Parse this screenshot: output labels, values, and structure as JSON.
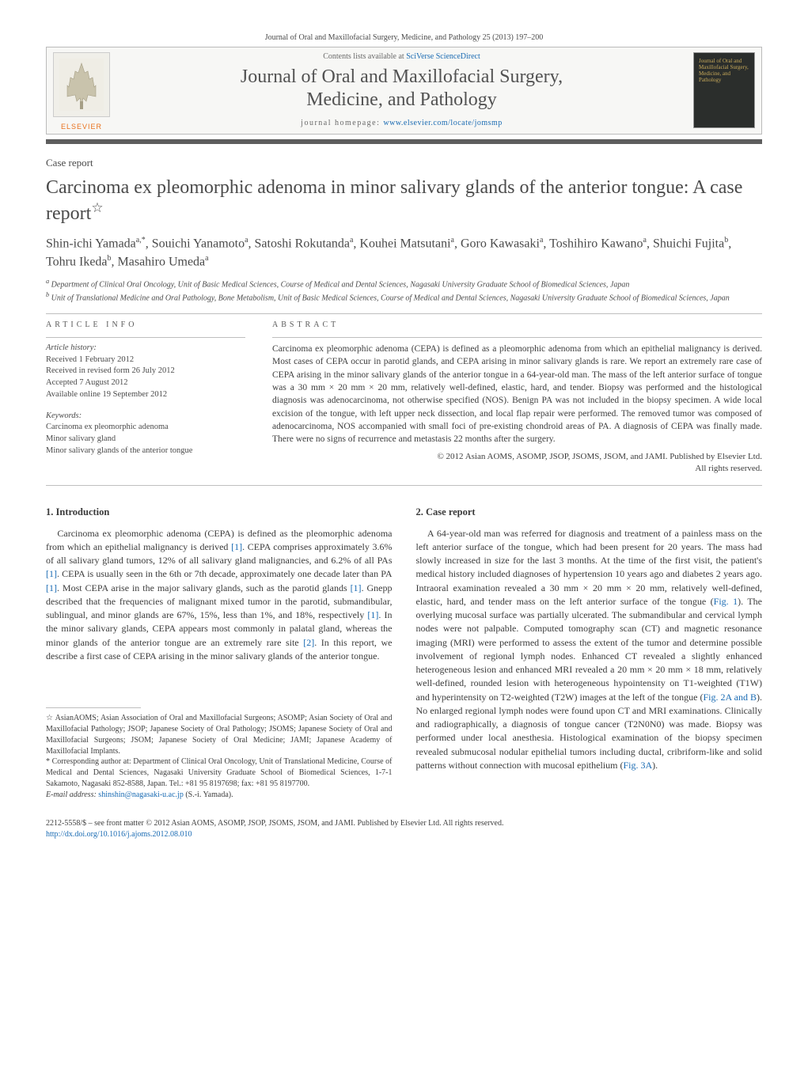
{
  "header": {
    "citation": "Journal of Oral and Maxillofacial Surgery, Medicine, and Pathology 25 (2013) 197–200",
    "contents_label": "Contents lists available at ",
    "contents_link": "SciVerse ScienceDirect",
    "journal_name_l1": "Journal of Oral and Maxillofacial Surgery,",
    "journal_name_l2": "Medicine, and Pathology",
    "homepage_label": "journal homepage: ",
    "homepage_url": "www.elsevier.com/locate/jomsmp",
    "publisher_word": "ELSEVIER",
    "cover_text": "Journal of Oral and Maxillofacial Surgery, Medicine, and Pathology"
  },
  "article": {
    "doc_type": "Case report",
    "title": "Carcinoma ex pleomorphic adenoma in minor salivary glands of the anterior tongue: A case report",
    "title_star": "☆",
    "authors_html": "Shin-ichi Yamada<sup>a,*</sup>, Souichi Yanamoto<sup>a</sup>, Satoshi Rokutanda<sup>a</sup>, Kouhei Matsutani<sup>a</sup>, Goro Kawasaki<sup>a</sup>, Toshihiro Kawano<sup>a</sup>, Shuichi Fujita<sup>b</sup>, Tohru Ikeda<sup>b</sup>, Masahiro Umeda<sup>a</sup>",
    "affiliations": {
      "a": "Department of Clinical Oral Oncology, Unit of Basic Medical Sciences, Course of Medical and Dental Sciences, Nagasaki University Graduate School of Biomedical Sciences, Japan",
      "b": "Unit of Translational Medicine and Oral Pathology, Bone Metabolism, Unit of Basic Medical Sciences, Course of Medical and Dental Sciences, Nagasaki University Graduate School of Biomedical Sciences, Japan"
    }
  },
  "info": {
    "heading": "article info",
    "history_label": "Article history:",
    "received": "Received 1 February 2012",
    "revised": "Received in revised form 26 July 2012",
    "accepted": "Accepted 7 August 2012",
    "online": "Available online 19 September 2012",
    "keywords_label": "Keywords:",
    "kw1": "Carcinoma ex pleomorphic adenoma",
    "kw2": "Minor salivary gland",
    "kw3": "Minor salivary glands of the anterior tongue"
  },
  "abstract": {
    "heading": "abstract",
    "body": "Carcinoma ex pleomorphic adenoma (CEPA) is defined as a pleomorphic adenoma from which an epithelial malignancy is derived. Most cases of CEPA occur in parotid glands, and CEPA arising in minor salivary glands is rare. We report an extremely rare case of CEPA arising in the minor salivary glands of the anterior tongue in a 64-year-old man. The mass of the left anterior surface of tongue was a 30 mm × 20 mm × 20 mm, relatively well-defined, elastic, hard, and tender. Biopsy was performed and the histological diagnosis was adenocarcinoma, not otherwise specified (NOS). Benign PA was not included in the biopsy specimen. A wide local excision of the tongue, with left upper neck dissection, and local flap repair were performed. The removed tumor was composed of adenocarcinoma, NOS accompanied with small foci of pre-existing chondroid areas of PA. A diagnosis of CEPA was finally made. There were no signs of recurrence and metastasis 22 months after the surgery.",
    "copyright1": "© 2012 Asian AOMS, ASOMP, JSOP, JSOMS, JSOM, and JAMI. Published by Elsevier Ltd.",
    "copyright2": "All rights reserved."
  },
  "sections": {
    "intro_head": "1.  Introduction",
    "intro_body": "Carcinoma ex pleomorphic adenoma (CEPA) is defined as the pleomorphic adenoma from which an epithelial malignancy is derived [1]. CEPA comprises approximately 3.6% of all salivary gland tumors, 12% of all salivary gland malignancies, and 6.2% of all PAs [1]. CEPA is usually seen in the 6th or 7th decade, approximately one decade later than PA [1]. Most CEPA arise in the major salivary glands, such as the parotid glands [1]. Gnepp described that the frequencies of malignant mixed tumor in the parotid, submandibular, sublingual, and minor glands are 67%, 15%, less than 1%, and 18%, respectively [1]. In the minor salivary glands, CEPA appears most commonly in palatal gland, whereas the minor glands of the anterior tongue are an extremely rare site [2]. In this report, we describe a first case of CEPA arising in the minor salivary glands of the anterior tongue.",
    "case_head": "2.  Case report",
    "case_body": "A 64-year-old man was referred for diagnosis and treatment of a painless mass on the left anterior surface of the tongue, which had been present for 20 years. The mass had slowly increased in size for the last 3 months. At the time of the first visit, the patient's medical history included diagnoses of hypertension 10 years ago and diabetes 2 years ago. Intraoral examination revealed a 30 mm × 20 mm × 20 mm, relatively well-defined, elastic, hard, and tender mass on the left anterior surface of the tongue (Fig. 1). The overlying mucosal surface was partially ulcerated. The submandibular and cervical lymph nodes were not palpable. Computed tomography scan (CT) and magnetic resonance imaging (MRI) were performed to assess the extent of the tumor and determine possible involvement of regional lymph nodes. Enhanced CT revealed a slightly enhanced heterogeneous lesion and enhanced MRI revealed a 20 mm × 20 mm × 18 mm, relatively well-defined, rounded lesion with heterogeneous hypointensity on T1-weighted (T1W) and hyperintensity on T2-weighted (T2W) images at the left of the tongue (Fig. 2A and B). No enlarged regional lymph nodes were found upon CT and MRI examinations. Clinically and radiographically, a diagnosis of tongue cancer (T2N0N0) was made. Biopsy was performed under local anesthesia. Histological examination of the biopsy specimen revealed submucosal nodular epithelial tumors including ductal, cribriform-like and solid patterns without connection with mucosal epithelium (Fig. 3A)."
  },
  "footnotes": {
    "star": "☆ AsianAOMS; Asian Association of Oral and Maxillofacial Surgeons; ASOMP; Asian Society of Oral and Maxillofacial Pathology; JSOP; Japanese Society of Oral Pathology; JSOMS; Japanese Society of Oral and Maxillofacial Surgeons; JSOM; Japanese Society of Oral Medicine; JAMI; Japanese Academy of Maxillofacial Implants.",
    "corr": "* Corresponding author at: Department of Clinical Oral Oncology, Unit of Translational Medicine, Course of Medical and Dental Sciences, Nagasaki University Graduate School of Biomedical Sciences, 1-7-1 Sakamoto, Nagasaki 852-8588, Japan. Tel.: +81 95 8197698; fax: +81 95 8197700.",
    "email_label": "E-mail address: ",
    "email": "shinshin@nagasaki-u.ac.jp",
    "email_tail": " (S.-i. Yamada)."
  },
  "bottom": {
    "line1": "2212-5558/$ – see front matter © 2012 Asian AOMS, ASOMP, JSOP, JSOMS, JSOM, and JAMI. Published by Elsevier Ltd. All rights reserved.",
    "doi_url": "http://dx.doi.org/10.1016/j.ajoms.2012.08.010"
  },
  "colors": {
    "text": "#3a3a3a",
    "link": "#1a6bb3",
    "rule": "#5d5d5d",
    "border": "#bfbfbf",
    "banner_bg": "#f7f7f5",
    "elsevier_orange": "#e9711c"
  },
  "typography": {
    "title_fontsize": 24,
    "body_fontsize": 12,
    "abstract_fontsize": 11.5,
    "meta_fontsize": 10.5,
    "footnote_fontsize": 10
  }
}
